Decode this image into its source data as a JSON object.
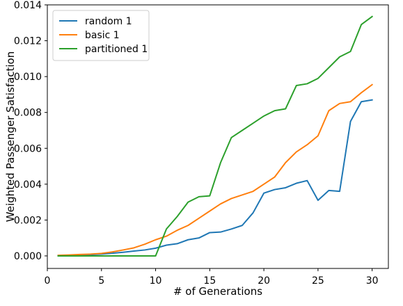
{
  "chart_data": {
    "type": "line",
    "title": "",
    "xlabel": "# of Generations",
    "ylabel": "Weighted Passenger Satisfaction",
    "xlim": [
      0,
      31.5
    ],
    "ylim": [
      -0.0007,
      0.014
    ],
    "xticks": [
      0,
      5,
      10,
      15,
      20,
      25,
      30
    ],
    "yticks": [
      0.0,
      0.002,
      0.004,
      0.006,
      0.008,
      0.01,
      0.012,
      0.014
    ],
    "ytick_labels": [
      "0.000",
      "0.002",
      "0.004",
      "0.006",
      "0.008",
      "0.010",
      "0.012",
      "0.014"
    ],
    "grid": false,
    "legend_position": "top-left",
    "x": [
      1,
      2,
      3,
      4,
      5,
      6,
      7,
      8,
      9,
      10,
      11,
      12,
      13,
      14,
      15,
      16,
      17,
      18,
      19,
      20,
      21,
      22,
      23,
      24,
      25,
      26,
      27,
      28,
      29,
      30
    ],
    "series": [
      {
        "name": "random 1",
        "color": "#1f77b4",
        "values": [
          2e-05,
          3e-05,
          5e-05,
          7e-05,
          0.0001,
          0.00015,
          0.0002,
          0.00027,
          0.00033,
          0.00043,
          0.0006,
          0.00068,
          0.0009,
          0.001,
          0.0013,
          0.00133,
          0.0015,
          0.0017,
          0.0024,
          0.0035,
          0.0037,
          0.0038,
          0.00405,
          0.0042,
          0.0031,
          0.00365,
          0.0036,
          0.0075,
          0.0086,
          0.0087
        ]
      },
      {
        "name": "basic 1",
        "color": "#ff7f0e",
        "values": [
          3e-05,
          5e-05,
          8e-05,
          0.0001,
          0.00014,
          0.00022,
          0.00033,
          0.00045,
          0.00065,
          0.0009,
          0.0011,
          0.00143,
          0.0017,
          0.0021,
          0.0025,
          0.0029,
          0.0032,
          0.0034,
          0.0036,
          0.004,
          0.0044,
          0.0052,
          0.0058,
          0.0062,
          0.0067,
          0.0081,
          0.0085,
          0.0086,
          0.0091,
          0.00955
        ]
      },
      {
        "name": "partitioned 1",
        "color": "#2ca02c",
        "values": [
          0,
          0,
          0,
          0,
          0,
          0,
          0,
          0,
          0,
          0,
          0.0015,
          0.0022,
          0.003,
          0.0033,
          0.00335,
          0.0052,
          0.0066,
          0.007,
          0.0074,
          0.0078,
          0.0081,
          0.0082,
          0.0095,
          0.0096,
          0.0099,
          0.0105,
          0.0111,
          0.0114,
          0.0129,
          0.01335
        ]
      }
    ]
  }
}
